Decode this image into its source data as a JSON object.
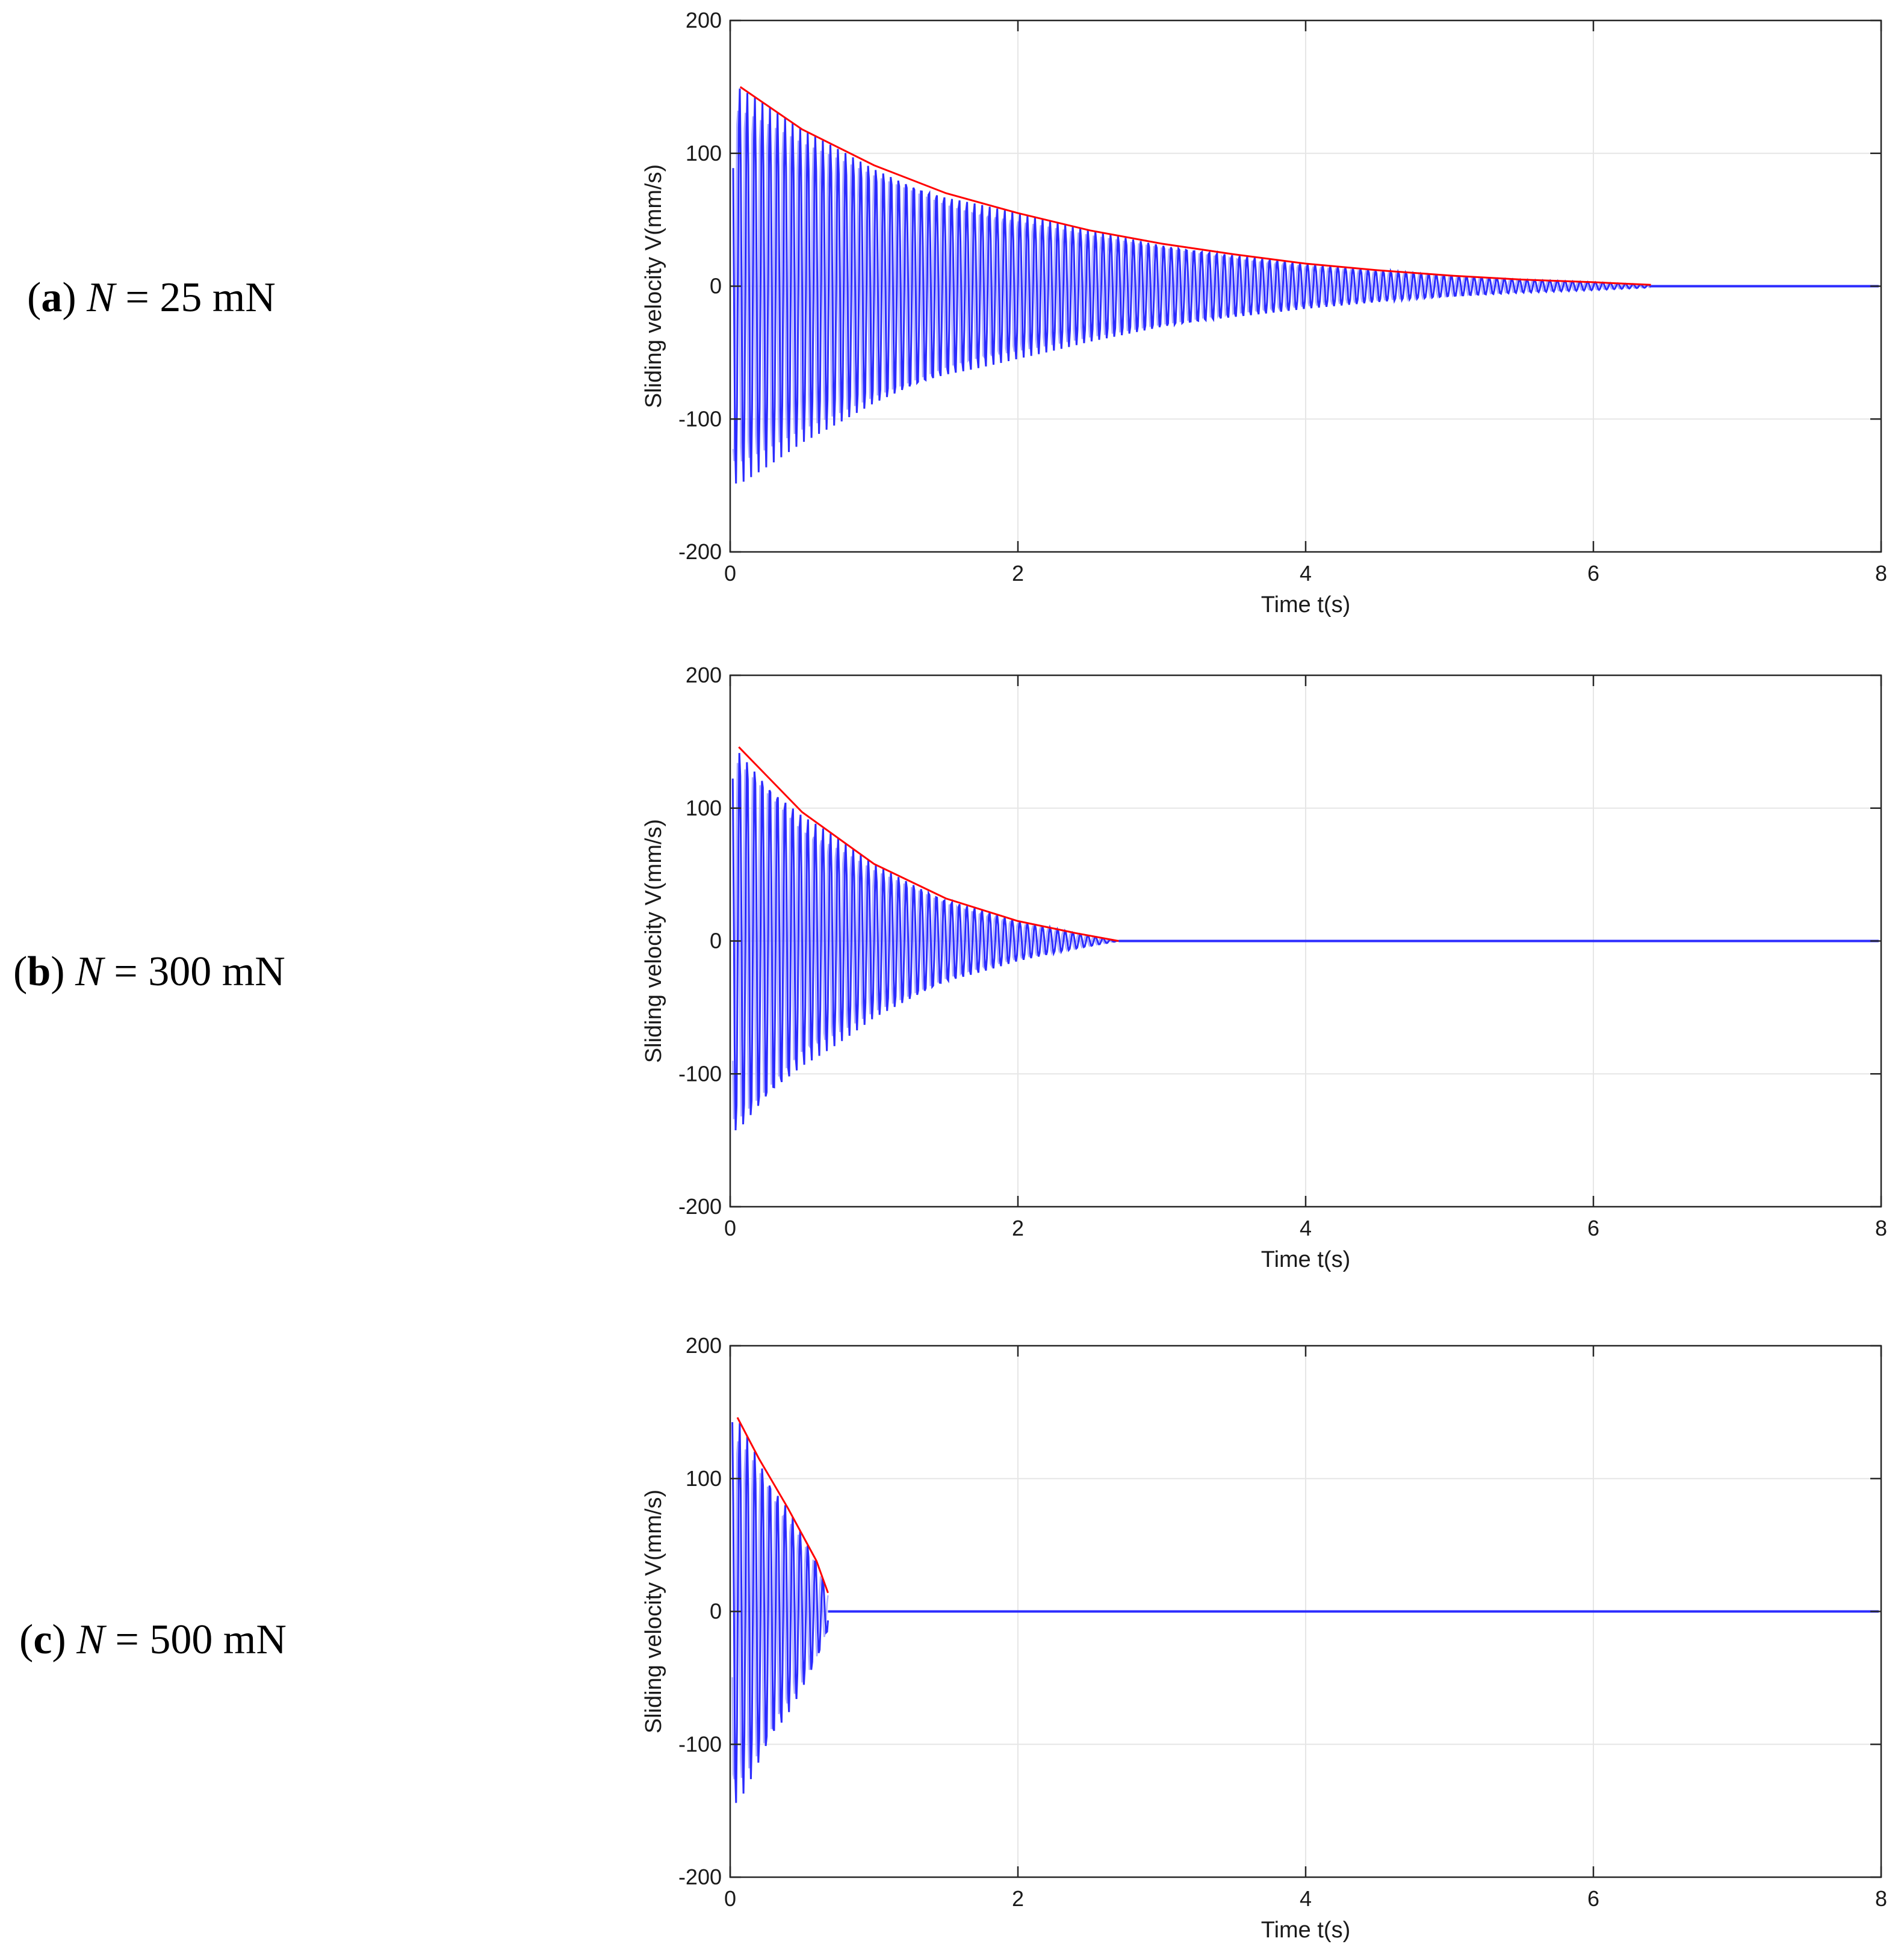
{
  "panels": [
    {
      "letter": "a",
      "symbol": "N",
      "equals": "=",
      "value": "25 mN"
    },
    {
      "letter": "b",
      "symbol": "N",
      "equals": "=",
      "value": "300 mN"
    },
    {
      "letter": "c",
      "symbol": "N",
      "equals": "=",
      "value": "500 mN"
    }
  ],
  "colors": {
    "signal": "#2b2bff",
    "envelope": "#ff0000",
    "grid": "#e6e6e6",
    "axis": "#262626"
  },
  "chart_data": [
    {
      "type": "line",
      "title": "",
      "xlabel": "Time t(s)",
      "ylabel": "Sliding velocity V(mm/s)",
      "xlim": [
        0,
        8
      ],
      "ylim": [
        -200,
        200
      ],
      "xticks": [
        "0",
        "2",
        "4",
        "6",
        "8"
      ],
      "yticks": [
        "200",
        "100",
        "0",
        "-100",
        "-200"
      ],
      "grid": true,
      "series": [
        {
          "name": "velocity",
          "kind": "oscillation",
          "freq_hz": 19,
          "stop_time": 6.4
        },
        {
          "name": "upper envelope",
          "kind": "envelope",
          "x": [
            0.07,
            0.5,
            1.0,
            1.5,
            2.0,
            2.5,
            3.0,
            3.5,
            4.0,
            4.5,
            5.0,
            5.5,
            6.0,
            6.4
          ],
          "y": [
            150,
            118,
            91,
            70,
            55,
            42,
            32,
            24,
            17,
            12,
            8,
            5,
            3,
            1
          ]
        }
      ]
    },
    {
      "type": "line",
      "title": "",
      "xlabel": "Time t(s)",
      "ylabel": "Sliding velocity V(mm/s)",
      "xlim": [
        0,
        8
      ],
      "ylim": [
        -200,
        200
      ],
      "xticks": [
        "0",
        "2",
        "4",
        "6",
        "8"
      ],
      "yticks": [
        "200",
        "100",
        "0",
        "-100",
        "-200"
      ],
      "grid": true,
      "series": [
        {
          "name": "velocity",
          "kind": "oscillation",
          "freq_hz": 19,
          "stop_time": 2.7
        },
        {
          "name": "upper envelope",
          "kind": "envelope",
          "x": [
            0.06,
            0.5,
            1.0,
            1.5,
            2.0,
            2.4,
            2.7
          ],
          "y": [
            146,
            97,
            58,
            32,
            15,
            6,
            0
          ]
        }
      ]
    },
    {
      "type": "line",
      "title": "",
      "xlabel": "Time t(s)",
      "ylabel": "Sliding velocity V(mm/s)",
      "xlim": [
        0,
        8
      ],
      "ylim": [
        -200,
        200
      ],
      "xticks": [
        "0",
        "2",
        "4",
        "6",
        "8"
      ],
      "yticks": [
        "200",
        "100",
        "0",
        "-100",
        "-200"
      ],
      "grid": true,
      "series": [
        {
          "name": "velocity",
          "kind": "oscillation",
          "freq_hz": 19,
          "stop_time": 0.68
        },
        {
          "name": "upper envelope",
          "kind": "envelope",
          "x": [
            0.05,
            0.2,
            0.4,
            0.6,
            0.68
          ],
          "y": [
            146,
            115,
            78,
            38,
            14
          ]
        }
      ]
    }
  ]
}
